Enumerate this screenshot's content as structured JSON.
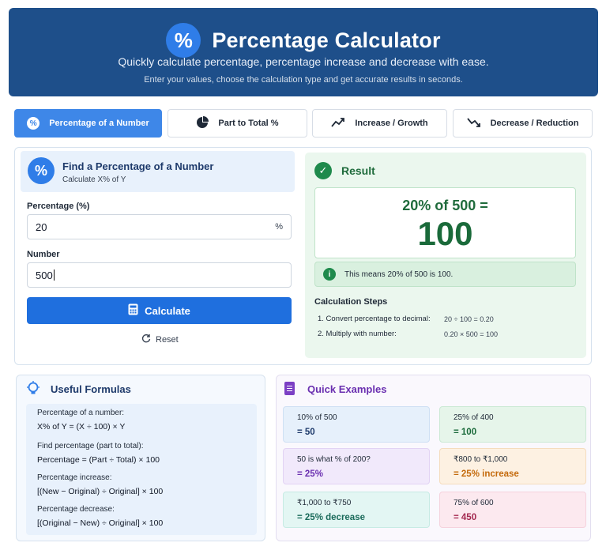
{
  "header": {
    "logo_symbol": "%",
    "title": "Percentage Calculator",
    "subtitle": "Quickly calculate percentage, percentage increase and decrease with ease.",
    "description": "Enter your values, choose the calculation type and get accurate results in seconds."
  },
  "tabs": [
    {
      "label": "Percentage of a Number",
      "icon": "percent-circle-icon",
      "active": true
    },
    {
      "label": "Part to Total %",
      "icon": "pie-chart-icon",
      "active": false
    },
    {
      "label": "Increase / Growth",
      "icon": "trending-up-icon",
      "active": false
    },
    {
      "label": "Decrease / Reduction",
      "icon": "trending-down-icon",
      "active": false
    }
  ],
  "calculator": {
    "heading": "Find a Percentage of a Number",
    "subheading": "Calculate X% of Y",
    "percentage_label": "Percentage (%)",
    "percentage_value": "20",
    "percentage_suffix": "%",
    "number_label": "Number",
    "number_value": "500",
    "calculate_label": "Calculate",
    "reset_label": "Reset"
  },
  "result": {
    "title": "Result",
    "expression": "20% of 500 =",
    "value": "100",
    "info": "This means 20% of 500 is 100.",
    "steps_title": "Calculation Steps",
    "steps": [
      {
        "label": "1.  Convert percentage to decimal:",
        "calc": "20 ÷ 100 = 0.20"
      },
      {
        "label": "2.  Multiply with number:",
        "calc": "0.20 × 500 = 100"
      }
    ]
  },
  "formulas": {
    "title": "Useful Formulas",
    "items": [
      {
        "label": "Percentage of a number:",
        "expr": "X% of Y = (X ÷ 100) × Y"
      },
      {
        "label": "Find percentage (part to total):",
        "expr": "Percentage = (Part ÷ Total) × 100"
      },
      {
        "label": "Percentage increase:",
        "expr": "[(New − Original) ÷ Original] × 100"
      },
      {
        "label": "Percentage decrease:",
        "expr": "[(Original − New) ÷ Original] × 100"
      }
    ]
  },
  "examples": {
    "title": "Quick Examples",
    "items": [
      {
        "q": "10% of 500",
        "a": "= 50"
      },
      {
        "q": "25% of 400",
        "a": "= 100"
      },
      {
        "q": "50 is what % of 200?",
        "a": "= 25%"
      },
      {
        "q": "₹800 to ₹1,000",
        "a": "= 25% increase"
      },
      {
        "q": "₹1,000 to ₹750",
        "a": "= 25% decrease"
      },
      {
        "q": "75% of 600",
        "a": "= 450"
      }
    ]
  },
  "colors": {
    "header_bg": "#1e4f8a",
    "primary": "#1f6fde",
    "result_green": "#1f6b3c",
    "examples_purple": "#6a2fb0"
  }
}
